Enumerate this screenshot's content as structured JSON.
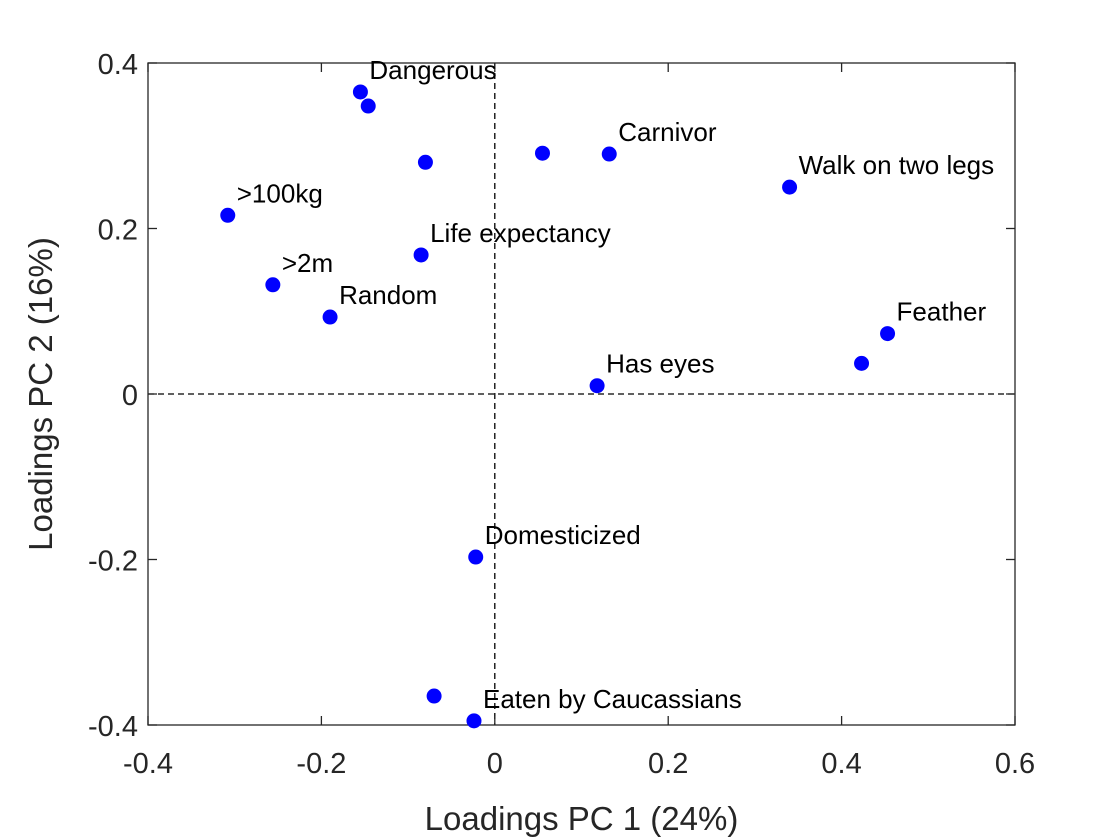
{
  "chart_data": {
    "type": "scatter",
    "xlabel": "Loadings PC 1 (24%)",
    "ylabel": "Loadings PC 2 (16%)",
    "xlim": [
      -0.4,
      0.6
    ],
    "ylim": [
      -0.4,
      0.4
    ],
    "xticks": [
      "-0.4",
      "-0.2",
      "0",
      "0.2",
      "0.4",
      "0.6"
    ],
    "yticks": [
      "-0.4",
      "-0.2",
      "0",
      "0.2",
      "0.4"
    ],
    "xtick_values": [
      -0.4,
      -0.2,
      0,
      0.2,
      0.4,
      0.6
    ],
    "ytick_values": [
      -0.4,
      -0.2,
      0,
      0.2,
      0.4
    ],
    "reference_lines": [
      "x = 0 (dashed)",
      "y = 0 (dashed)"
    ],
    "marker_color": "#0000ff",
    "grid": false,
    "points": [
      {
        "x": -0.155,
        "y": 0.365,
        "label": "Dangerous"
      },
      {
        "x": -0.146,
        "y": 0.348,
        "label": ""
      },
      {
        "x": -0.08,
        "y": 0.28,
        "label": ""
      },
      {
        "x": 0.055,
        "y": 0.291,
        "label": ""
      },
      {
        "x": 0.132,
        "y": 0.29,
        "label": "Carnivor"
      },
      {
        "x": 0.34,
        "y": 0.25,
        "label": "Walk on two legs"
      },
      {
        "x": -0.308,
        "y": 0.216,
        "label": ">100kg"
      },
      {
        "x": -0.085,
        "y": 0.168,
        "label": "Life expectancy"
      },
      {
        "x": -0.256,
        "y": 0.132,
        "label": ">2m"
      },
      {
        "x": -0.19,
        "y": 0.093,
        "label": "Random"
      },
      {
        "x": 0.453,
        "y": 0.073,
        "label": "Feather"
      },
      {
        "x": 0.423,
        "y": 0.037,
        "label": ""
      },
      {
        "x": 0.118,
        "y": 0.01,
        "label": "Has eyes"
      },
      {
        "x": -0.022,
        "y": -0.197,
        "label": "Domesticized"
      },
      {
        "x": -0.07,
        "y": -0.365,
        "label": ""
      },
      {
        "x": -0.024,
        "y": -0.395,
        "label": "Eaten by Caucassians"
      }
    ]
  }
}
